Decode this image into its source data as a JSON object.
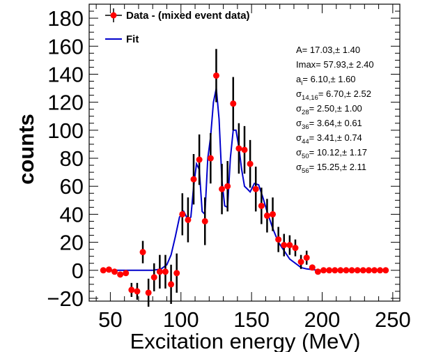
{
  "chart_data": {
    "type": "scatter",
    "xlabel": "Excitation energy (MeV)",
    "ylabel": "counts",
    "xlim": [
      35,
      255
    ],
    "ylim": [
      -22,
      190
    ],
    "x_ticks": [
      50,
      100,
      150,
      200,
      250
    ],
    "x_tick_labels": [
      "50",
      "100",
      "150",
      "200",
      "250"
    ],
    "y_ticks": [
      -20,
      0,
      20,
      40,
      60,
      80,
      100,
      120,
      140,
      160,
      180
    ],
    "y_tick_labels": [
      "−20",
      "0",
      "20",
      "40",
      "60",
      "80",
      "100",
      "120",
      "140",
      "160",
      "180"
    ],
    "legend_position": "top-left",
    "colors": {
      "data": "#ff0000",
      "error": "#000000",
      "fit": "#0000cc"
    },
    "series": [
      {
        "name": "Data - (mixed event data)",
        "kind": "points-with-errors",
        "points": [
          {
            "x": 45,
            "y": 0,
            "err": 0
          },
          {
            "x": 49,
            "y": 0.5,
            "err": 0
          },
          {
            "x": 53,
            "y": -1,
            "err": 0
          },
          {
            "x": 57,
            "y": -3,
            "err": 0
          },
          {
            "x": 61,
            "y": -2,
            "err": 0
          },
          {
            "x": 65,
            "y": -14,
            "err": 5
          },
          {
            "x": 69,
            "y": -15,
            "err": 6
          },
          {
            "x": 73,
            "y": 13,
            "err": 8
          },
          {
            "x": 77,
            "y": -16,
            "err": 10
          },
          {
            "x": 81,
            "y": -5,
            "err": 10
          },
          {
            "x": 85,
            "y": -1,
            "err": 12
          },
          {
            "x": 89,
            "y": -1,
            "err": 12
          },
          {
            "x": 93,
            "y": -10,
            "err": 14
          },
          {
            "x": 97,
            "y": -2,
            "err": 14
          },
          {
            "x": 101,
            "y": 40,
            "err": 15
          },
          {
            "x": 105,
            "y": 36,
            "err": 16
          },
          {
            "x": 109,
            "y": 65,
            "err": 18
          },
          {
            "x": 113,
            "y": 79,
            "err": 18
          },
          {
            "x": 117,
            "y": 35,
            "err": 17
          },
          {
            "x": 121,
            "y": 80,
            "err": 18
          },
          {
            "x": 125,
            "y": 139,
            "err": 19
          },
          {
            "x": 129,
            "y": 58,
            "err": 18
          },
          {
            "x": 133,
            "y": 60,
            "err": 18
          },
          {
            "x": 137,
            "y": 119,
            "err": 19
          },
          {
            "x": 141,
            "y": 87,
            "err": 18
          },
          {
            "x": 145,
            "y": 86,
            "err": 17
          },
          {
            "x": 149,
            "y": 76,
            "err": 17
          },
          {
            "x": 153,
            "y": 58,
            "err": 16
          },
          {
            "x": 157,
            "y": 46,
            "err": 13
          },
          {
            "x": 161,
            "y": 39,
            "err": 12
          },
          {
            "x": 165,
            "y": 40,
            "err": 12
          },
          {
            "x": 169,
            "y": 22,
            "err": 9
          },
          {
            "x": 173,
            "y": 18,
            "err": 8
          },
          {
            "x": 177,
            "y": 18,
            "err": 7
          },
          {
            "x": 181,
            "y": 16,
            "err": 6
          },
          {
            "x": 185,
            "y": 6,
            "err": 5
          },
          {
            "x": 189,
            "y": 9,
            "err": 5
          },
          {
            "x": 193,
            "y": 2,
            "err": 0
          },
          {
            "x": 197,
            "y": -1,
            "err": 0
          },
          {
            "x": 201,
            "y": 0,
            "err": 0
          },
          {
            "x": 205,
            "y": 0,
            "err": 0
          },
          {
            "x": 209,
            "y": 0,
            "err": 0
          },
          {
            "x": 213,
            "y": 0,
            "err": 0
          },
          {
            "x": 217,
            "y": 0,
            "err": 0
          },
          {
            "x": 221,
            "y": 0,
            "err": 0
          },
          {
            "x": 225,
            "y": 0,
            "err": 0
          },
          {
            "x": 229,
            "y": 0,
            "err": 0
          },
          {
            "x": 233,
            "y": 0,
            "err": 0
          },
          {
            "x": 237,
            "y": 0,
            "err": 0
          },
          {
            "x": 241,
            "y": 0,
            "err": 0
          },
          {
            "x": 245,
            "y": 0,
            "err": 0
          }
        ]
      },
      {
        "name": "Fit",
        "kind": "line",
        "x": [
          45,
          80,
          86,
          90,
          93,
          96,
          99,
          102,
          105,
          107,
          109,
          111,
          113,
          115,
          117,
          119,
          121,
          123,
          125,
          127,
          129,
          131,
          133,
          135,
          137,
          139,
          141,
          143,
          145,
          147,
          149,
          152,
          155,
          158,
          161,
          165,
          169,
          173,
          177,
          181,
          185,
          189,
          193,
          197,
          200
        ],
        "y": [
          0,
          0,
          1,
          4,
          11,
          24,
          38,
          42,
          36,
          38,
          60,
          76,
          72,
          42,
          40,
          80,
          95,
          120,
          130,
          108,
          64,
          46,
          45,
          80,
          100,
          100,
          88,
          72,
          60,
          58,
          56,
          62,
          61,
          52,
          42,
          30,
          20,
          14,
          8,
          5,
          2,
          1,
          0.5,
          0,
          0
        ]
      }
    ],
    "fit_parameters": [
      {
        "name": "A",
        "sub": "",
        "value": "17.03",
        "err": "1.40"
      },
      {
        "name": "Imax",
        "sub": "",
        "value": "57.93",
        "err": "2.40"
      },
      {
        "name": "a",
        "sub": "i",
        "value": "6.10",
        "err": "1.60"
      },
      {
        "name": "σ",
        "sub": "14,16",
        "value": "6.70",
        "err": "2.52"
      },
      {
        "name": "σ",
        "sub": "28",
        "value": "2.50",
        "err": "1.00"
      },
      {
        "name": "σ",
        "sub": "36",
        "value": "3.64",
        "err": "0.61"
      },
      {
        "name": "σ",
        "sub": "44",
        "value": "3.41",
        "err": "0.74"
      },
      {
        "name": "σ",
        "sub": "50",
        "value": "10.12",
        "err": "1.17"
      },
      {
        "name": "σ",
        "sub": "56",
        "value": "15.25",
        "err": "2.11"
      }
    ]
  }
}
